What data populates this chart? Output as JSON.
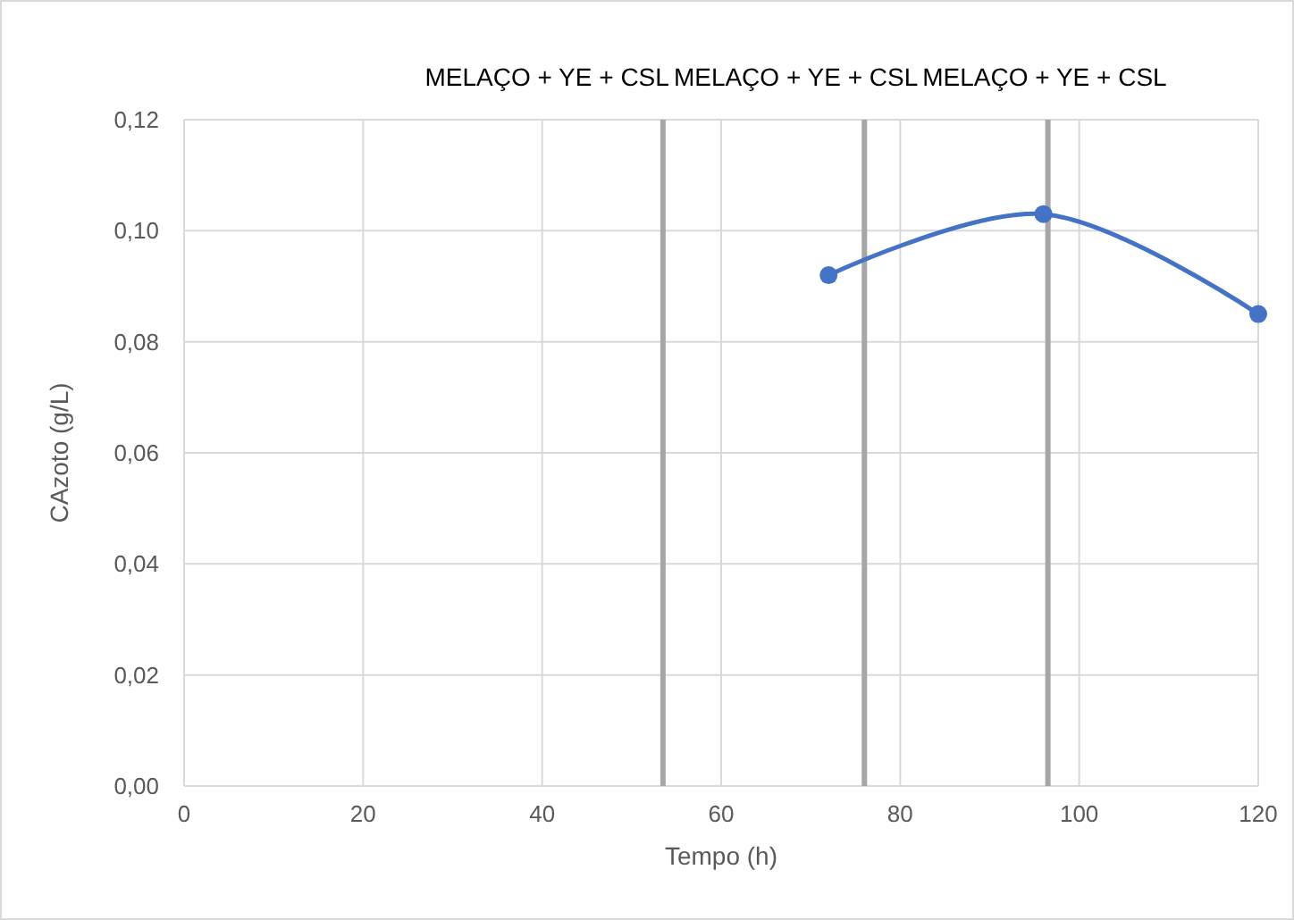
{
  "chart_data": {
    "type": "line",
    "xlabel": "Tempo (h)",
    "ylabel": "CAzoto (g/L)",
    "x": [
      72,
      96,
      120
    ],
    "series": [
      {
        "color": "#4472c4",
        "values": [
          0.092,
          0.103,
          0.085
        ]
      }
    ],
    "xlim": [
      0,
      120
    ],
    "xticks": [
      0,
      20,
      40,
      60,
      80,
      100,
      120
    ],
    "ylim": [
      0,
      0.12
    ],
    "yticks": [
      {
        "value": 0,
        "label": "0,00"
      },
      {
        "value": 0.02,
        "label": "0,02"
      },
      {
        "value": 0.04,
        "label": "0,04"
      },
      {
        "value": 0.06,
        "label": "0,06"
      },
      {
        "value": 0.08,
        "label": "0,08"
      },
      {
        "value": 0.1,
        "label": "0,10"
      },
      {
        "value": 0.12,
        "label": "0,12"
      }
    ],
    "grid": true,
    "marker": "circle",
    "line_style": "solid",
    "ref_lines": [
      {
        "axis": "x",
        "value": 53.5,
        "label": "MELAÇO + YE + CSL",
        "color": "#a6a6a6"
      },
      {
        "axis": "x",
        "value": 76,
        "label": "MELAÇO + YE + CSL",
        "color": "#a6a6a6"
      },
      {
        "axis": "x",
        "value": 96.5,
        "label": "MELAÇO + YE + CSL",
        "color": "#a6a6a6"
      }
    ]
  }
}
